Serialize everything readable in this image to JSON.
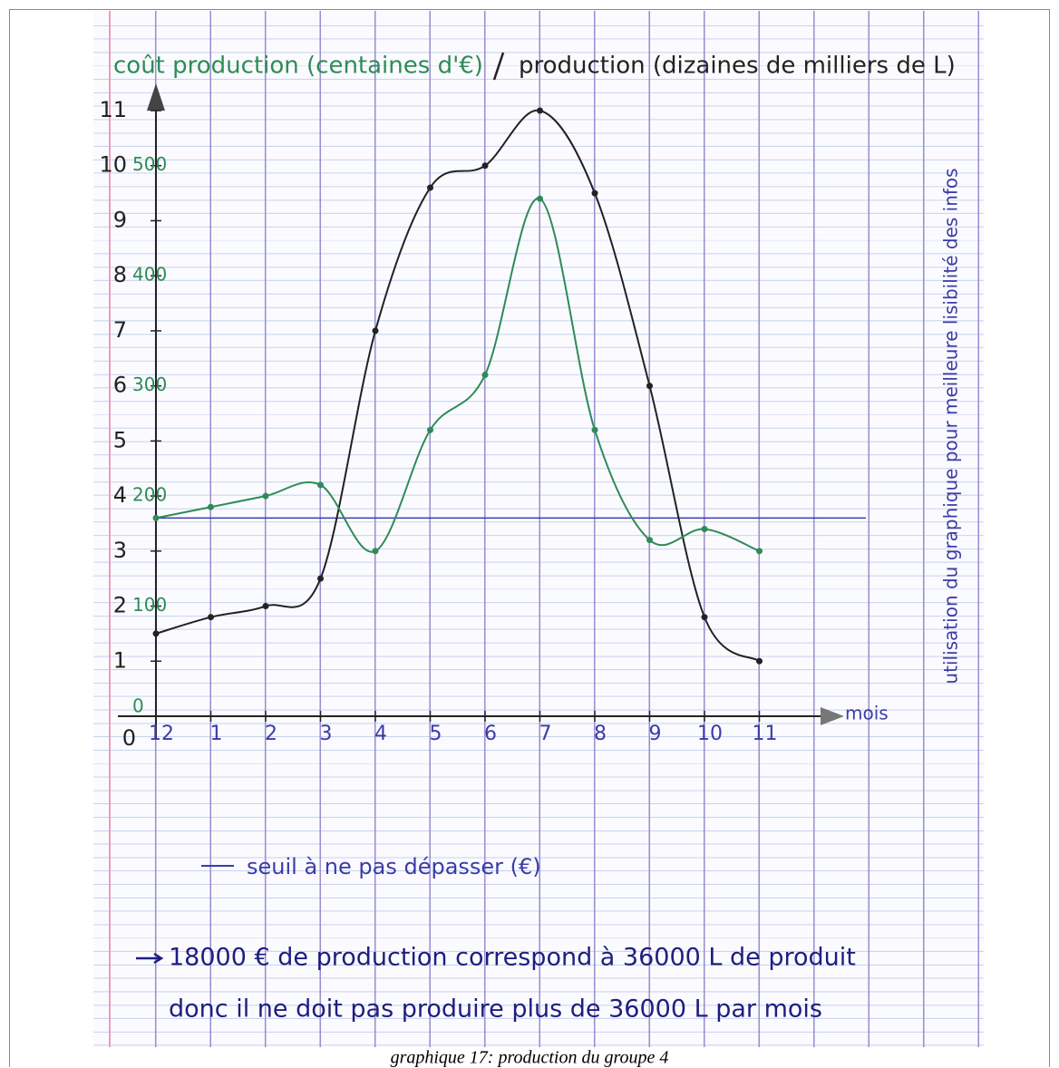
{
  "chart_data": {
    "type": "line",
    "ylabel": "production (dizaines de milliers de L)",
    "y2label": "coût production (centaines d'€)",
    "xlabel": "mois",
    "side_note": "utilisation du graphique pour meilleure lisibilité des infos",
    "categories": [
      "12",
      "1",
      "2",
      "3",
      "4",
      "5",
      "6",
      "7",
      "8",
      "9",
      "10",
      "11"
    ],
    "series": [
      {
        "name": "production",
        "color": "#222222",
        "values": [
          1.5,
          1.8,
          2.0,
          2.5,
          7,
          9.6,
          10,
          11,
          9.5,
          6,
          1.8,
          1
        ]
      },
      {
        "name": "coût production",
        "color": "#2e8b57",
        "axis": "y2",
        "values": [
          180,
          190,
          200,
          210,
          150,
          260,
          310,
          470,
          260,
          160,
          170,
          150
        ]
      }
    ],
    "threshold": {
      "value": 180,
      "label": "seuil à ne pas dépasser (€)",
      "color": "#3b3ba8"
    },
    "ylim": [
      0,
      11
    ],
    "yticks": [
      0,
      1,
      2,
      3,
      4,
      5,
      6,
      7,
      8,
      9,
      10,
      11
    ],
    "y2lim": [
      0,
      550
    ],
    "y2ticks": [
      0,
      100,
      200,
      300,
      400,
      500
    ],
    "annotations": [
      "18000 € de production correspond à 36000 L de produit",
      "donc il ne doit pas produire plus de 36000 L par mois"
    ],
    "caption": "graphique 17: production du groupe 4"
  }
}
